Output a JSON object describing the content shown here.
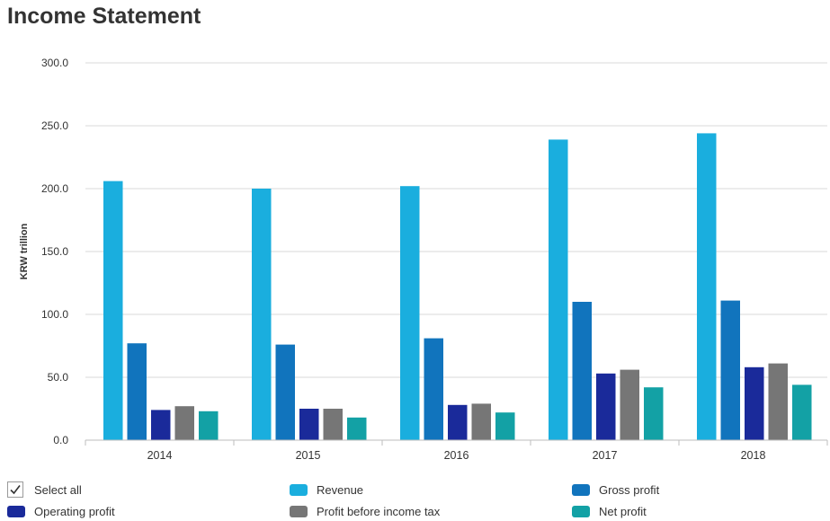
{
  "title": "Income Statement",
  "legend": {
    "select_all": "Select all",
    "select_all_checked": true
  },
  "colors": {
    "revenue": "#1aaede",
    "gross": "#1174bd",
    "operating": "#1a2a9a",
    "pbt": "#767676",
    "net": "#13a1a5",
    "grid": "#d9d9d9",
    "axis": "#bdbdbd"
  },
  "chart_data": {
    "type": "bar",
    "title": "Income Statement",
    "xlabel": "",
    "ylabel": "KRW trillion",
    "ylim": [
      0,
      300
    ],
    "yticks": [
      "0.0",
      "50.0",
      "100.0",
      "150.0",
      "200.0",
      "250.0",
      "300.0"
    ],
    "grid": true,
    "legend_position": "bottom",
    "categories": [
      "2014",
      "2015",
      "2016",
      "2017",
      "2018"
    ],
    "series": [
      {
        "name": "Revenue",
        "color_key": "revenue",
        "values": [
          206,
          200,
          202,
          239,
          244
        ]
      },
      {
        "name": "Gross profit",
        "color_key": "gross",
        "values": [
          77,
          76,
          81,
          110,
          111
        ]
      },
      {
        "name": "Operating profit",
        "color_key": "operating",
        "values": [
          24,
          25,
          28,
          53,
          58
        ]
      },
      {
        "name": "Profit before income tax",
        "color_key": "pbt",
        "values": [
          27,
          25,
          29,
          56,
          61
        ]
      },
      {
        "name": "Net profit",
        "color_key": "net",
        "values": [
          23,
          18,
          22,
          42,
          44
        ]
      }
    ]
  }
}
